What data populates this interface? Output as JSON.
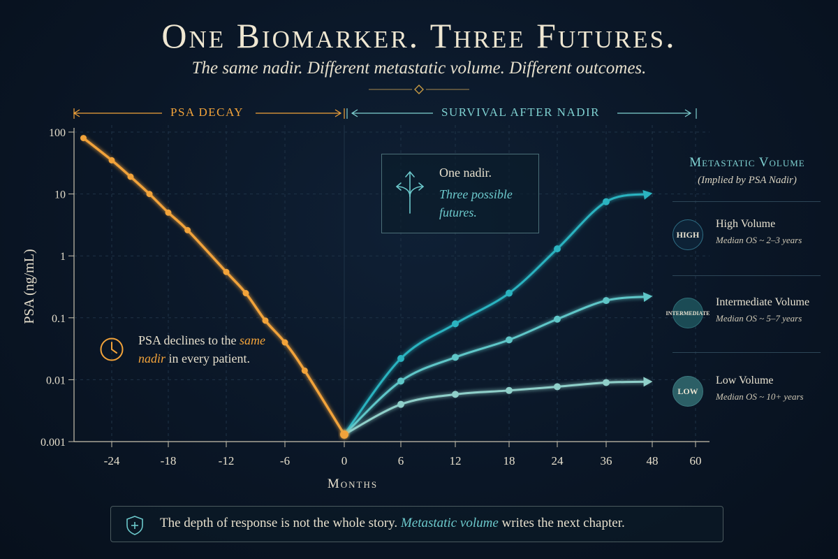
{
  "header": {
    "title": "One Biomarker. Three Futures.",
    "subtitle": "The same nadir. Different metastatic volume. Different outcomes."
  },
  "sections": {
    "decay": "PSA DECAY",
    "survival": "SURVIVAL AFTER NADIR"
  },
  "callouts": {
    "nadir_line1": "One nadir.",
    "nadir_line2": "Three possible futures.",
    "decline_pre": "PSA declines to the ",
    "decline_hl": "same nadir",
    "decline_post": " in every patient."
  },
  "legend": {
    "title": "Metastatic Volume",
    "subtitle": "(Implied by PSA Nadir)",
    "items": [
      {
        "badge": "HIGH",
        "name": "High Volume",
        "os": "Median OS ~ 2–3 years",
        "color": "#2bb3c0"
      },
      {
        "badge": "INTERMEDIATE",
        "name": "Intermediate Volume",
        "os": "Median OS ~ 5–7 years",
        "color": "#5fc6c8"
      },
      {
        "badge": "LOW",
        "name": "Low Volume",
        "os": "Median OS ~ 10+ years",
        "color": "#8fcfc9"
      }
    ]
  },
  "footer": {
    "pre": "The depth of response is not the whole story. ",
    "hl": "Metastatic volume",
    "post": " writes the next chapter."
  },
  "colors": {
    "decay": "#f2a33a",
    "high": "#2bb3c0",
    "intermediate": "#5fc6c8",
    "low": "#8fcfc9",
    "grid": "#1f3347",
    "axis": "#c9c2ae"
  },
  "chart_data": {
    "type": "line",
    "ylabel": "PSA (ng/mL)",
    "xlabel": "Months",
    "y_scale": "log",
    "ylim": [
      0.001,
      100
    ],
    "y_ticks": [
      "0.001",
      "0.01",
      "0.1",
      "1",
      "10",
      "100"
    ],
    "x_ticks": [
      "-24",
      "-18",
      "-12",
      "-6",
      "0",
      "6",
      "12",
      "18",
      "24",
      "36",
      "48",
      "60"
    ],
    "series": [
      {
        "name": "PSA Decay",
        "x": [
          -27,
          -24,
          -22,
          -20,
          -18,
          -16,
          -12,
          -10,
          -8,
          -6,
          -4,
          0
        ],
        "y": [
          80,
          35,
          19,
          10,
          5,
          2.6,
          0.55,
          0.25,
          0.09,
          0.04,
          0.014,
          0.0013
        ]
      },
      {
        "name": "High Volume",
        "x": [
          0,
          6,
          12,
          18,
          24,
          36,
          47
        ],
        "y": [
          0.0013,
          0.022,
          0.08,
          0.25,
          1.3,
          7.5,
          10
        ]
      },
      {
        "name": "Intermediate Volume",
        "x": [
          0,
          6,
          12,
          18,
          24,
          36,
          47
        ],
        "y": [
          0.0013,
          0.0095,
          0.023,
          0.044,
          0.095,
          0.19,
          0.22
        ]
      },
      {
        "name": "Low Volume",
        "x": [
          0,
          6,
          12,
          18,
          24,
          36,
          47
        ],
        "y": [
          0.0013,
          0.004,
          0.0058,
          0.0067,
          0.0077,
          0.009,
          0.0093
        ]
      }
    ]
  }
}
